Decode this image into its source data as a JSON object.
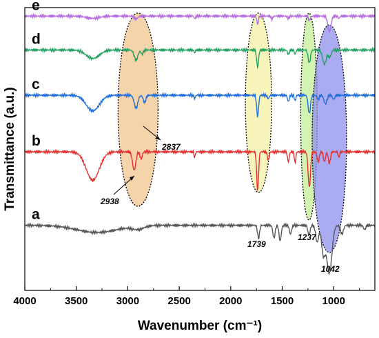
{
  "chart_data": {
    "type": "line",
    "xlabel": "Wavenumber (cm⁻¹)",
    "ylabel": "Transmittance (a.u.)",
    "xlim": [
      4000,
      600
    ],
    "x_reversed": true,
    "x_ticks": [
      "4000",
      "3500",
      "3000",
      "2500",
      "2000",
      "1500",
      "1000"
    ],
    "x_tick_values": [
      4000,
      3500,
      3000,
      2500,
      2000,
      1500,
      1000
    ],
    "ylim": [
      0,
      10
    ],
    "y_ticks_labeled": false,
    "grid": false,
    "series": [
      {
        "name": "a",
        "color": "#555555",
        "baseline": 2.3,
        "features": [
          [
            3300,
            0.25,
            280
          ],
          [
            2900,
            0.12,
            80
          ],
          [
            1730,
            0.45,
            14
          ],
          [
            1580,
            0.45,
            15
          ],
          [
            1520,
            0.55,
            15
          ],
          [
            1420,
            0.3,
            15
          ],
          [
            1240,
            0.35,
            15
          ],
          [
            1160,
            0.6,
            20
          ],
          [
            1100,
            1.0,
            25
          ],
          [
            1042,
            1.7,
            35
          ],
          [
            920,
            0.3,
            20
          ],
          [
            700,
            0.15,
            15
          ]
        ]
      },
      {
        "name": "b",
        "color": "#e62e2e",
        "baseline": 4.9,
        "features": [
          [
            3340,
            1.0,
            90
          ],
          [
            2938,
            0.65,
            22
          ],
          [
            2870,
            0.25,
            15
          ],
          [
            2350,
            0.2,
            8
          ],
          [
            1739,
            1.35,
            13
          ],
          [
            1635,
            0.3,
            12
          ],
          [
            1440,
            0.35,
            12
          ],
          [
            1375,
            0.4,
            10
          ],
          [
            1237,
            1.25,
            16
          ],
          [
            1150,
            0.35,
            14
          ],
          [
            1090,
            0.35,
            14
          ],
          [
            1042,
            0.4,
            15
          ],
          [
            950,
            0.2,
            10
          ]
        ]
      },
      {
        "name": "c",
        "color": "#1f6fdc",
        "baseline": 6.9,
        "features": [
          [
            3340,
            0.55,
            90
          ],
          [
            2920,
            0.45,
            25
          ],
          [
            2837,
            0.25,
            18
          ],
          [
            2350,
            0.12,
            8
          ],
          [
            1739,
            0.75,
            13
          ],
          [
            1635,
            0.12,
            12
          ],
          [
            1440,
            0.22,
            12
          ],
          [
            1375,
            0.2,
            10
          ],
          [
            1237,
            0.65,
            16
          ],
          [
            1150,
            0.15,
            14
          ],
          [
            1080,
            0.3,
            20
          ],
          [
            1000,
            0.15,
            15
          ]
        ]
      },
      {
        "name": "d",
        "color": "#22a060",
        "baseline": 8.5,
        "features": [
          [
            3340,
            0.3,
            90
          ],
          [
            2920,
            0.35,
            25
          ],
          [
            2860,
            0.15,
            15
          ],
          [
            2350,
            0.1,
            8
          ],
          [
            1739,
            0.6,
            13
          ],
          [
            1440,
            0.15,
            12
          ],
          [
            1375,
            0.15,
            10
          ],
          [
            1237,
            0.45,
            16
          ],
          [
            1090,
            0.5,
            25
          ],
          [
            1040,
            0.25,
            20
          ]
        ]
      },
      {
        "name": "e",
        "color": "#b56be0",
        "baseline": 9.7,
        "features": [
          [
            3340,
            0.08,
            90
          ],
          [
            2920,
            0.1,
            25
          ],
          [
            2350,
            0.1,
            8
          ],
          [
            1739,
            0.3,
            10
          ],
          [
            1600,
            0.1,
            12
          ],
          [
            1440,
            0.08,
            12
          ],
          [
            1237,
            0.15,
            14
          ],
          [
            1042,
            0.55,
            22
          ],
          [
            950,
            0.08,
            12
          ]
        ]
      }
    ],
    "highlights": [
      {
        "center": 2900,
        "fill": "#f3c68f"
      },
      {
        "center": 1730,
        "fill": "#f6f2a6"
      },
      {
        "center": 1240,
        "fill": "#c6ee98"
      },
      {
        "center": 1042,
        "fill": "#8f8fec"
      }
    ],
    "annotations": [
      {
        "text": "2938",
        "x": 2938
      },
      {
        "text": "2837",
        "x": 2837
      },
      {
        "text": "1739",
        "x": 1739
      },
      {
        "text": "1237",
        "x": 1237
      },
      {
        "text": "1042",
        "x": 1042
      }
    ]
  }
}
